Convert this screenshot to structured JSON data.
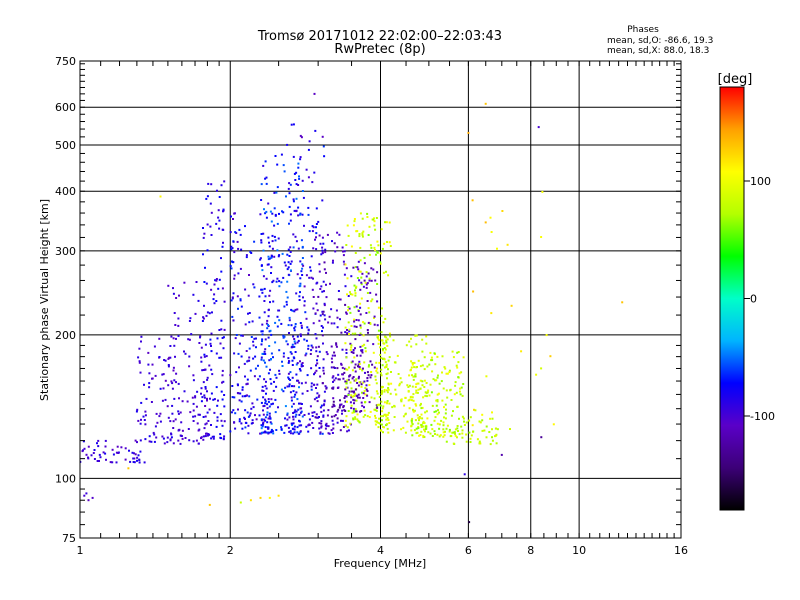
{
  "chart_data": {
    "type": "scatter",
    "title": "Tromsø 20171012 22:02:00–22:03:43",
    "subtitle": "RwPretec (8p)",
    "xlabel": "Frequency [MHz]",
    "ylabel": "Stationary phase Virtual Height [km]",
    "x_scale": "log",
    "y_scale": "log",
    "xlim": [
      1,
      16
    ],
    "ylim": [
      75,
      750
    ],
    "x_ticks": [
      1,
      2,
      4,
      6,
      8,
      10,
      16
    ],
    "y_ticks": [
      75,
      100,
      200,
      300,
      400,
      500,
      600,
      750
    ],
    "x_gridlines": [
      2,
      4,
      6,
      8,
      10
    ],
    "y_gridlines": [
      100,
      200,
      300,
      400,
      500,
      600
    ],
    "grid": true,
    "stats": {
      "header": "Phases",
      "line_o": "mean, sd,O: -86.6, 19.3",
      "line_x": "mean, sd,X:  88.0, 18.3"
    },
    "colorbar": {
      "label": "[deg]",
      "range": [
        -180,
        180
      ],
      "ticks": [
        100,
        0,
        -100
      ],
      "colormap": [
        "#000000",
        "#3c0078",
        "#5a00c8",
        "#0000ff",
        "#00b4ff",
        "#00ffc8",
        "#00ff00",
        "#b4ff00",
        "#ffff00",
        "#ffa000",
        "#ff0000"
      ]
    },
    "clusters": [
      {
        "f": [
          1.0,
          1.35
        ],
        "h": [
          108,
          120
        ],
        "phase": [
          -110,
          -80
        ],
        "n": 55
      },
      {
        "f": [
          1.3,
          1.55
        ],
        "h": [
          118,
          200
        ],
        "phase": [
          -110,
          -80
        ],
        "n": 75
      },
      {
        "f": [
          1.5,
          1.8
        ],
        "h": [
          118,
          260
        ],
        "phase": [
          -110,
          -85
        ],
        "n": 110
      },
      {
        "f": [
          1.75,
          1.95
        ],
        "h": [
          120,
          420
        ],
        "phase": [
          -105,
          -70
        ],
        "n": 140
      },
      {
        "f": [
          2.0,
          2.45
        ],
        "h": [
          124,
          360
        ],
        "phase": [
          -110,
          -60
        ],
        "n": 220
      },
      {
        "f": [
          2.3,
          2.8
        ],
        "h": [
          124,
          480
        ],
        "phase": [
          -95,
          -45
        ],
        "n": 280
      },
      {
        "f": [
          2.6,
          3.1
        ],
        "h": [
          124,
          560
        ],
        "phase": [
          -110,
          -60
        ],
        "n": 200
      },
      {
        "f": [
          2.9,
          3.5
        ],
        "h": [
          124,
          340
        ],
        "phase": [
          -125,
          -85
        ],
        "n": 180
      },
      {
        "f": [
          3.2,
          3.7
        ],
        "h": [
          138,
          190
        ],
        "phase": [
          -135,
          -100
        ],
        "n": 70
      },
      {
        "f": [
          3.4,
          4.2
        ],
        "h": [
          128,
          360
        ],
        "phase": [
          60,
          110
        ],
        "n": 260
      },
      {
        "f": [
          3.5,
          3.95
        ],
        "h": [
          140,
          290
        ],
        "phase": [
          -130,
          -95
        ],
        "n": 90
      },
      {
        "f": [
          3.9,
          5.0
        ],
        "h": [
          124,
          200
        ],
        "phase": [
          75,
          100
        ],
        "n": 170
      },
      {
        "f": [
          4.6,
          5.9
        ],
        "h": [
          122,
          185
        ],
        "phase": [
          60,
          105
        ],
        "n": 160
      },
      {
        "f": [
          5.3,
          6.9
        ],
        "h": [
          118,
          135
        ],
        "phase": [
          65,
          95
        ],
        "n": 60
      },
      {
        "f": [
          6.0,
          9.0
        ],
        "h": [
          118,
          400
        ],
        "phase": [
          80,
          140
        ],
        "n": 25
      }
    ],
    "points": [
      {
        "f": 1.02,
        "h": 92,
        "phase": -100
      },
      {
        "f": 1.04,
        "h": 90,
        "phase": -110
      },
      {
        "f": 1.06,
        "h": 91,
        "phase": -105
      },
      {
        "f": 1.03,
        "h": 93,
        "phase": -95
      },
      {
        "f": 1.82,
        "h": 88,
        "phase": 130
      },
      {
        "f": 2.1,
        "h": 89,
        "phase": 80
      },
      {
        "f": 2.2,
        "h": 90,
        "phase": 120
      },
      {
        "f": 2.3,
        "h": 91,
        "phase": 125
      },
      {
        "f": 2.4,
        "h": 91,
        "phase": 110
      },
      {
        "f": 2.5,
        "h": 92,
        "phase": 120
      },
      {
        "f": 6.02,
        "h": 81,
        "phase": -160
      },
      {
        "f": 5.9,
        "h": 102,
        "phase": -90
      },
      {
        "f": 6.5,
        "h": 610,
        "phase": 130
      },
      {
        "f": 6.0,
        "h": 530,
        "phase": 140
      },
      {
        "f": 8.3,
        "h": 545,
        "phase": -100
      },
      {
        "f": 12.2,
        "h": 234,
        "phase": 130
      },
      {
        "f": 1.25,
        "h": 105,
        "phase": 130
      },
      {
        "f": 1.45,
        "h": 390,
        "phase": 110
      },
      {
        "f": 2.95,
        "h": 640,
        "phase": -110
      },
      {
        "f": 8.2,
        "h": 165,
        "phase": 100
      },
      {
        "f": 8.4,
        "h": 122,
        "phase": -130
      },
      {
        "f": 7.0,
        "h": 112,
        "phase": -120
      }
    ]
  }
}
